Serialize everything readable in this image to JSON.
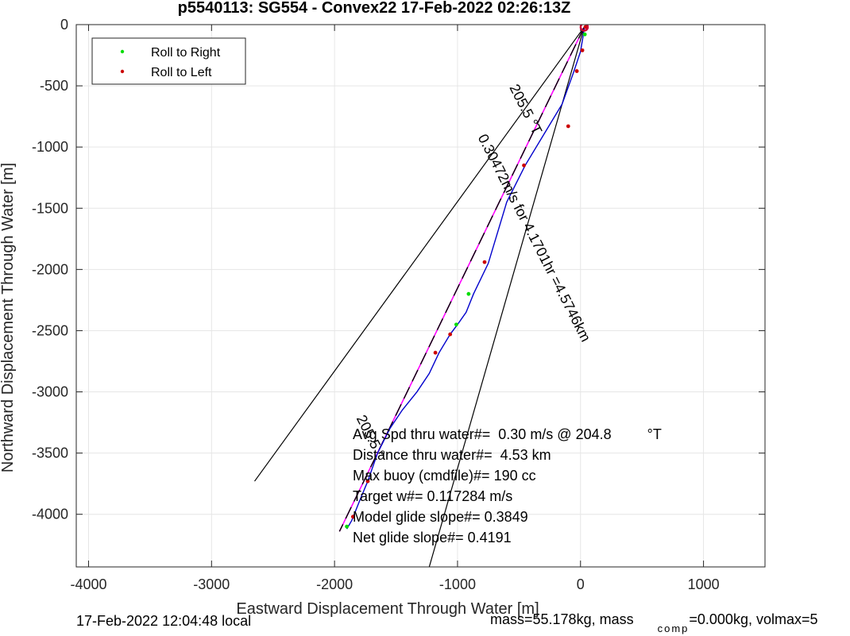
{
  "chart_data": {
    "type": "line",
    "title": "p5540113: SG554 - Convex22 17-Feb-2022 02:26:13Z",
    "xlabel": "Eastward Displacement Through Water [m]",
    "ylabel": "Northward Displacement Through Water [m]",
    "xlim": [
      -4100,
      1500
    ],
    "ylim": [
      -4430,
      0
    ],
    "x_ticks": [
      -4000,
      -3000,
      -2000,
      -1000,
      0,
      1000
    ],
    "x_tick_labels": [
      "-4000",
      "-3000",
      "-2000",
      "-1000",
      "0",
      "1000"
    ],
    "y_ticks": [
      0,
      -500,
      -1000,
      -1500,
      -2000,
      -2500,
      -3000,
      -3500,
      -4000
    ],
    "y_tick_labels": [
      "0",
      "-500",
      "-1000",
      "-1500",
      "-2000",
      "-2500",
      "-3000",
      "-3500",
      "-4000"
    ],
    "grid": true,
    "legend": {
      "placement": "top-left",
      "entries": [
        {
          "label": "Roll to Right",
          "color": "#00dd00"
        },
        {
          "label": "Roll to Left",
          "color": "#cc0000"
        }
      ]
    },
    "track": {
      "color": "#0000cc",
      "x": [
        30,
        20,
        0,
        -60,
        -150,
        -300,
        -450,
        -600,
        -750,
        -870,
        -930,
        -1000,
        -1060,
        -1150,
        -1230,
        -1330,
        -1450,
        -1550,
        -1650,
        -1730,
        -1800,
        -1860,
        -1900
      ],
      "y": [
        -30,
        -100,
        -220,
        -400,
        -650,
        -900,
        -1150,
        -1450,
        -1950,
        -2200,
        -2350,
        -2450,
        -2530,
        -2680,
        -2850,
        -3000,
        -3150,
        -3300,
        -3500,
        -3730,
        -3900,
        -4050,
        -4120
      ]
    },
    "roll_right_points": {
      "color": "#00dd00",
      "x": [
        35,
        -910,
        -1010,
        -1900
      ],
      "y": [
        -80,
        -2200,
        -2450,
        -4100
      ]
    },
    "roll_left_points": {
      "color": "#cc0000",
      "x": [
        15,
        -30,
        -100,
        -460,
        -780,
        -1060,
        -1180,
        -1730,
        -1850,
        40
      ],
      "y": [
        -210,
        -380,
        -830,
        -1150,
        -1940,
        -2530,
        -2680,
        -3730,
        -4020,
        -20
      ]
    },
    "heading_line": {
      "color": "#ff00ff",
      "x": [
        30,
        -1960
      ],
      "y": [
        -20,
        -4140
      ]
    },
    "dashed_line": {
      "color": "#000000",
      "x": [
        30,
        -1960
      ],
      "y": [
        -20,
        -4140
      ]
    },
    "cone_lines": [
      {
        "color": "#000000",
        "x": [
          30,
          -2650
        ],
        "y": [
          -20,
          -3730
        ]
      },
      {
        "color": "#000000",
        "x": [
          30,
          -1230
        ],
        "y": [
          -20,
          -4430
        ]
      }
    ],
    "start_marker": {
      "color": "#cc0033",
      "x": 30,
      "y": -20
    },
    "annotations": [
      {
        "text": "205.5 °T",
        "x": -480,
        "y": -710,
        "rotation": 63
      },
      {
        "text": "0.30472m/s for 4.1701hr =4.5746km",
        "x": -410,
        "y": -1760,
        "rotation": 63
      },
      {
        "text": "205.5 °",
        "x": -1740,
        "y": -3380,
        "rotation": 63
      }
    ],
    "stats": [
      "Avg Spd thru water#=  0.30 m/s @ 204.8         °T",
      "Distance thru water#=  4.53 km",
      "Max buoy (cmdfile)#= 190 cc",
      "Target w#= 0.117284 m/s",
      "Model glide slope#= 0.3849",
      "Net glide slope#= 0.4191"
    ]
  },
  "footer": {
    "local_time": "17-Feb-2022 12:04:48 local",
    "mass_text": "mass=55.178kg, mass",
    "comp_subscript": "comp",
    "volmax_text": "=0.000kg, volmax=5"
  }
}
